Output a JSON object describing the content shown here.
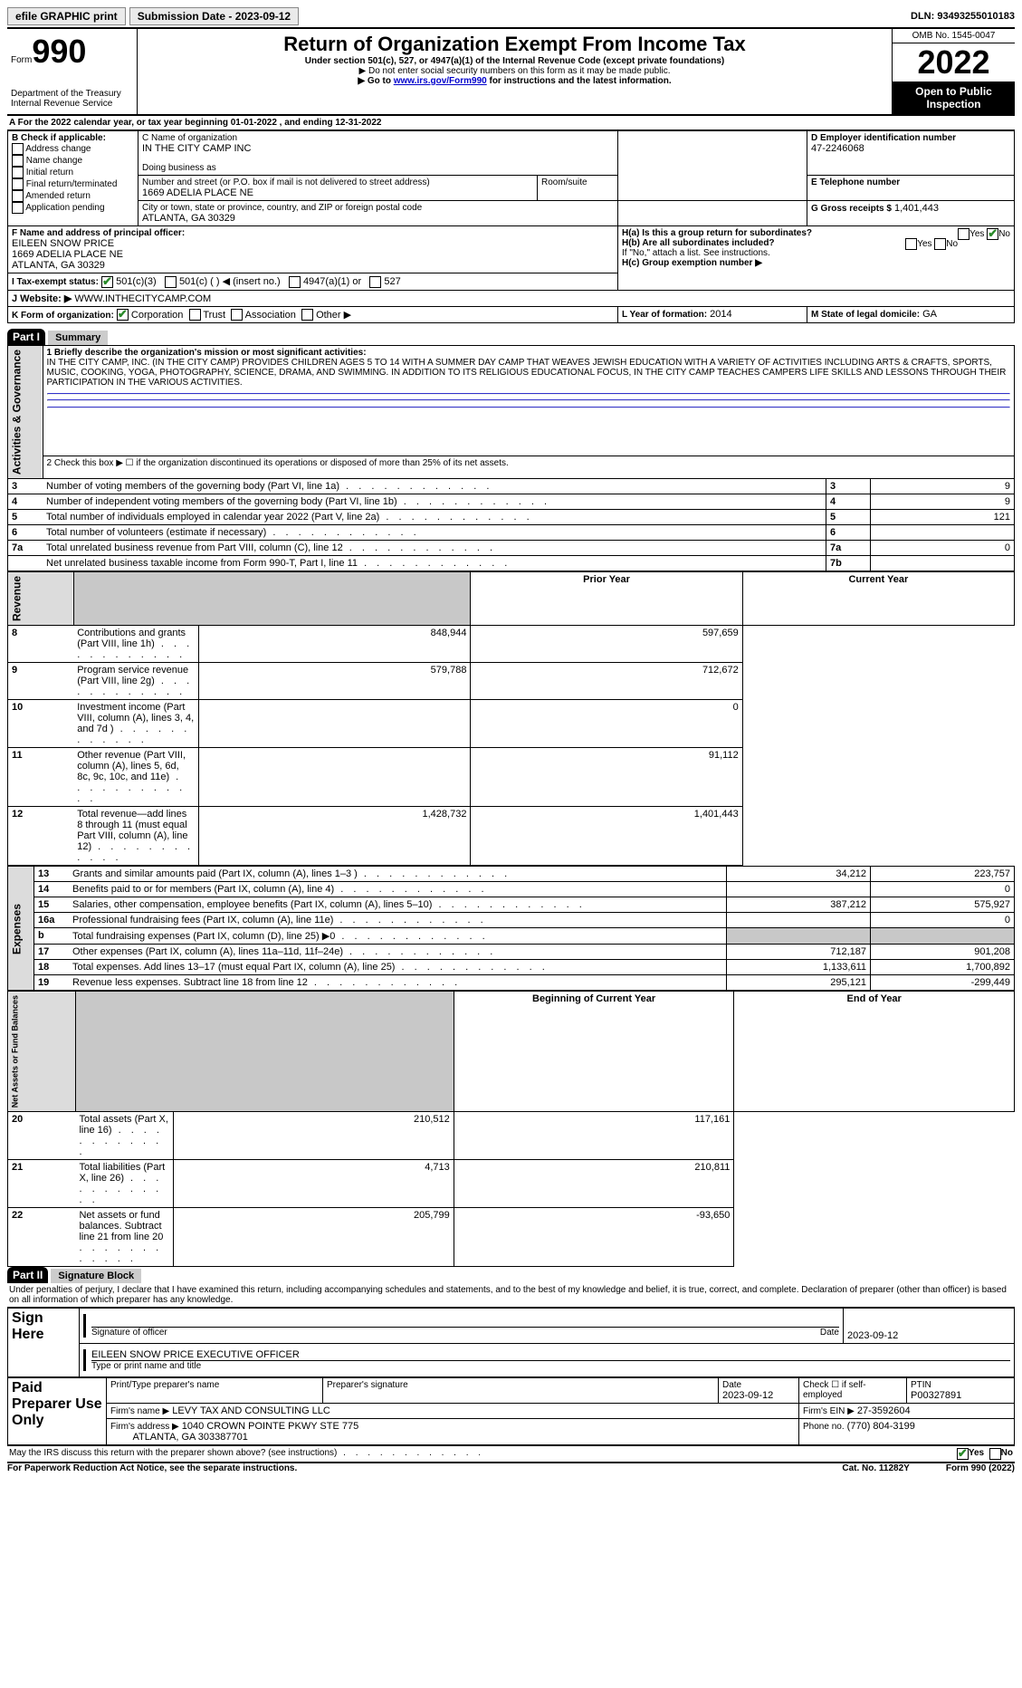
{
  "topbar": {
    "efile": "efile GRAPHIC print",
    "submission_label": "Submission Date - ",
    "submission_date": "2023-09-12",
    "dln_label": "DLN: ",
    "dln": "93493255010183"
  },
  "header": {
    "form_prefix": "Form",
    "form_no": "990",
    "dept": "Department of the Treasury",
    "irs": "Internal Revenue Service",
    "title": "Return of Organization Exempt From Income Tax",
    "subtitle": "Under section 501(c), 527, or 4947(a)(1) of the Internal Revenue Code (except private foundations)",
    "note1": "▶ Do not enter social security numbers on this form as it may be made public.",
    "note2_pre": "▶ Go to ",
    "note2_link": "www.irs.gov/Form990",
    "note2_post": " for instructions and the latest information.",
    "omb": "OMB No. 1545-0047",
    "year": "2022",
    "open": "Open to Public Inspection"
  },
  "period": {
    "label_a": "A For the 2022 calendar year, or tax year beginning ",
    "begin": "01-01-2022",
    "mid": " , and ending ",
    "end": "12-31-2022"
  },
  "boxB": {
    "label": "B Check if applicable:",
    "items": [
      "Address change",
      "Name change",
      "Initial return",
      "Final return/terminated",
      "Amended return",
      "Application pending"
    ]
  },
  "boxC": {
    "name_label": "C Name of organization",
    "name": "IN THE CITY CAMP INC",
    "dba_label": "Doing business as",
    "dba": "",
    "street_label": "Number and street (or P.O. box if mail is not delivered to street address)",
    "room_label": "Room/suite",
    "street": "1669 ADELIA PLACE NE",
    "city_label": "City or town, state or province, country, and ZIP or foreign postal code",
    "city": "ATLANTA, GA  30329"
  },
  "boxD": {
    "label": "D Employer identification number",
    "value": "47-2246068"
  },
  "boxE": {
    "label": "E Telephone number",
    "value": ""
  },
  "boxG": {
    "label": "G Gross receipts $",
    "value": "1,401,443"
  },
  "boxF": {
    "label": "F  Name and address of principal officer:",
    "name": "EILEEN SNOW PRICE",
    "addr1": "1669 ADELIA PLACE NE",
    "addr2": "ATLANTA, GA  30329"
  },
  "boxH": {
    "ha": "H(a)  Is this a group return for subordinates?",
    "hb": "H(b)  Are all subordinates included?",
    "hb_note": "If \"No,\" attach a list. See instructions.",
    "hc": "H(c)  Group exemption number ▶",
    "yes": "Yes",
    "no": "No"
  },
  "boxI": {
    "label": "I  Tax-exempt status:",
    "opts": [
      "501(c)(3)",
      "501(c) (  ) ◀ (insert no.)",
      "4947(a)(1) or",
      "527"
    ]
  },
  "boxJ": {
    "label": "J  Website: ▶",
    "value": "WWW.INTHECITYCAMP.COM"
  },
  "boxK": {
    "label": "K Form of organization:",
    "opts": [
      "Corporation",
      "Trust",
      "Association",
      "Other ▶"
    ]
  },
  "boxL": {
    "label": "L Year of formation:",
    "value": "2014"
  },
  "boxM": {
    "label": "M State of legal domicile:",
    "value": "GA"
  },
  "part1": {
    "header": "Part I",
    "title": "Summary"
  },
  "summary": {
    "l1_label": "1  Briefly describe the organization's mission or most significant activities:",
    "l1_text": "IN THE CITY CAMP, INC. (IN THE CITY CAMP) PROVIDES CHILDREN AGES 5 TO 14 WITH A SUMMER DAY CAMP THAT WEAVES JEWISH EDUCATION WITH A VARIETY OF ACTIVITIES INCLUDING ARTS & CRAFTS, SPORTS, MUSIC, COOKING, YOGA, PHOTOGRAPHY, SCIENCE, DRAMA, AND SWIMMING. IN ADDITION TO ITS RELIGIOUS EDUCATIONAL FOCUS, IN THE CITY CAMP TEACHES CAMPERS LIFE SKILLS AND LESSONS THROUGH THEIR PARTICIPATION IN THE VARIOUS ACTIVITIES.",
    "l2": "2  Check this box ▶ ☐ if the organization discontinued its operations or disposed of more than 25% of its net assets.",
    "rows_gov": [
      {
        "n": "3",
        "t": "Number of voting members of the governing body (Part VI, line 1a)",
        "c": "3",
        "v": "9"
      },
      {
        "n": "4",
        "t": "Number of independent voting members of the governing body (Part VI, line 1b)",
        "c": "4",
        "v": "9"
      },
      {
        "n": "5",
        "t": "Total number of individuals employed in calendar year 2022 (Part V, line 2a)",
        "c": "5",
        "v": "121"
      },
      {
        "n": "6",
        "t": "Total number of volunteers (estimate if necessary)",
        "c": "6",
        "v": ""
      },
      {
        "n": "7a",
        "t": "Total unrelated business revenue from Part VIII, column (C), line 12",
        "c": "7a",
        "v": "0"
      },
      {
        "n": "",
        "t": "Net unrelated business taxable income from Form 990-T, Part I, line 11",
        "c": "7b",
        "v": ""
      }
    ],
    "col_prior": "Prior Year",
    "col_current": "Current Year",
    "rev": [
      {
        "n": "8",
        "t": "Contributions and grants (Part VIII, line 1h)",
        "p": "848,944",
        "c": "597,659"
      },
      {
        "n": "9",
        "t": "Program service revenue (Part VIII, line 2g)",
        "p": "579,788",
        "c": "712,672"
      },
      {
        "n": "10",
        "t": "Investment income (Part VIII, column (A), lines 3, 4, and 7d )",
        "p": "",
        "c": "0"
      },
      {
        "n": "11",
        "t": "Other revenue (Part VIII, column (A), lines 5, 6d, 8c, 9c, 10c, and 11e)",
        "p": "",
        "c": "91,112"
      },
      {
        "n": "12",
        "t": "Total revenue—add lines 8 through 11 (must equal Part VIII, column (A), line 12)",
        "p": "1,428,732",
        "c": "1,401,443"
      }
    ],
    "exp": [
      {
        "n": "13",
        "t": "Grants and similar amounts paid (Part IX, column (A), lines 1–3 )",
        "p": "34,212",
        "c": "223,757"
      },
      {
        "n": "14",
        "t": "Benefits paid to or for members (Part IX, column (A), line 4)",
        "p": "",
        "c": "0"
      },
      {
        "n": "15",
        "t": "Salaries, other compensation, employee benefits (Part IX, column (A), lines 5–10)",
        "p": "387,212",
        "c": "575,927"
      },
      {
        "n": "16a",
        "t": "Professional fundraising fees (Part IX, column (A), line 11e)",
        "p": "",
        "c": "0"
      },
      {
        "n": "b",
        "t": "Total fundraising expenses (Part IX, column (D), line 25) ▶0",
        "p": "__shade__",
        "c": "__shade__"
      },
      {
        "n": "17",
        "t": "Other expenses (Part IX, column (A), lines 11a–11d, 11f–24e)",
        "p": "712,187",
        "c": "901,208"
      },
      {
        "n": "18",
        "t": "Total expenses. Add lines 13–17 (must equal Part IX, column (A), line 25)",
        "p": "1,133,611",
        "c": "1,700,892"
      },
      {
        "n": "19",
        "t": "Revenue less expenses. Subtract line 18 from line 12",
        "p": "295,121",
        "c": "-299,449"
      }
    ],
    "col_begin": "Beginning of Current Year",
    "col_end": "End of Year",
    "net": [
      {
        "n": "20",
        "t": "Total assets (Part X, line 16)",
        "p": "210,512",
        "c": "117,161"
      },
      {
        "n": "21",
        "t": "Total liabilities (Part X, line 26)",
        "p": "4,713",
        "c": "210,811"
      },
      {
        "n": "22",
        "t": "Net assets or fund balances. Subtract line 21 from line 20",
        "p": "205,799",
        "c": "-93,650"
      }
    ],
    "vlabels": {
      "gov": "Activities & Governance",
      "rev": "Revenue",
      "exp": "Expenses",
      "net": "Net Assets or Fund Balances"
    }
  },
  "part2": {
    "header": "Part II",
    "title": "Signature Block",
    "penalty": "Under penalties of perjury, I declare that I have examined this return, including accompanying schedules and statements, and to the best of my knowledge and belief, it is true, correct, and complete. Declaration of preparer (other than officer) is based on all information of which preparer has any knowledge."
  },
  "sign": {
    "here": "Sign Here",
    "sig_officer": "Signature of officer",
    "date": "Date",
    "date_val": "2023-09-12",
    "name": "EILEEN SNOW PRICE  EXECUTIVE OFFICER",
    "name_label": "Type or print name and title"
  },
  "preparer": {
    "label": "Paid Preparer Use Only",
    "print_label": "Print/Type preparer's name",
    "sig_label": "Preparer's signature",
    "date_label": "Date",
    "date": "2023-09-12",
    "check_label": "Check ☐ if self-employed",
    "ptin_label": "PTIN",
    "ptin": "P00327891",
    "firm_name_label": "Firm's name   ▶",
    "firm_name": "LEVY TAX AND CONSULTING LLC",
    "firm_ein_label": "Firm's EIN ▶",
    "firm_ein": "27-3592604",
    "firm_addr_label": "Firm's address ▶",
    "firm_addr1": "1040 CROWN POINTE PKWY STE 775",
    "firm_addr2": "ATLANTA, GA  303387701",
    "phone_label": "Phone no.",
    "phone": "(770) 804-3199"
  },
  "footer": {
    "discuss": "May the IRS discuss this return with the preparer shown above? (see instructions)",
    "yes": "Yes",
    "no": "No",
    "paperwork": "For Paperwork Reduction Act Notice, see the separate instructions.",
    "cat": "Cat. No. 11282Y",
    "form": "Form 990 (2022)"
  }
}
